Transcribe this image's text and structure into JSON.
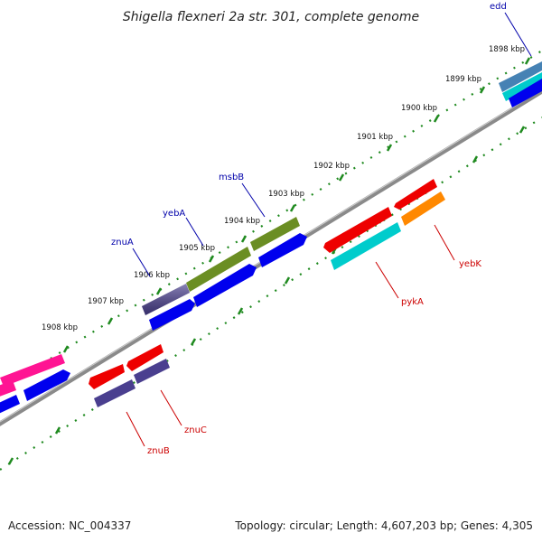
{
  "title": "Shigella flexneri 2a str. 301, complete genome",
  "footer": {
    "accession": "Accession: NC_004337",
    "summary": "Topology: circular; Length: 4,607,203 bp; Genes: 4,305"
  },
  "scale": {
    "unit": "kbp",
    "labels": [
      "1898 kbp",
      "1899 kbp",
      "1900 kbp",
      "1901 kbp",
      "1902 kbp",
      "1903 kbp",
      "1904 kbp",
      "1905 kbp",
      "1906 kbp",
      "1907 kbp",
      "1908 kbp"
    ]
  },
  "colors": {
    "backbone": "#8a8a8a",
    "tick": "#1f8a1f",
    "label_forward": "#0000aa",
    "label_reverse": "#cc0000",
    "cds": "#0000ee",
    "red_feature": "#ee0000",
    "cyan_feature": "#00cccc",
    "orange_feature": "#ff8800",
    "olive_feature": "#6b8e23",
    "purple_feature": "#4a3f8f",
    "pink_feature": "#ff1493",
    "steel_feature": "#4682b4"
  },
  "genes_forward": [
    {
      "name": "edd",
      "color": "steel"
    },
    {
      "name": "msbB",
      "color": "olive"
    },
    {
      "name": "yebA",
      "color": "olive"
    },
    {
      "name": "znuA",
      "color": "purple"
    }
  ],
  "genes_reverse": [
    {
      "name": "yebK",
      "color": "orange"
    },
    {
      "name": "pykA",
      "color": "cyan"
    },
    {
      "name": "znuC",
      "color": "purple"
    },
    {
      "name": "znuB",
      "color": "purple"
    }
  ]
}
